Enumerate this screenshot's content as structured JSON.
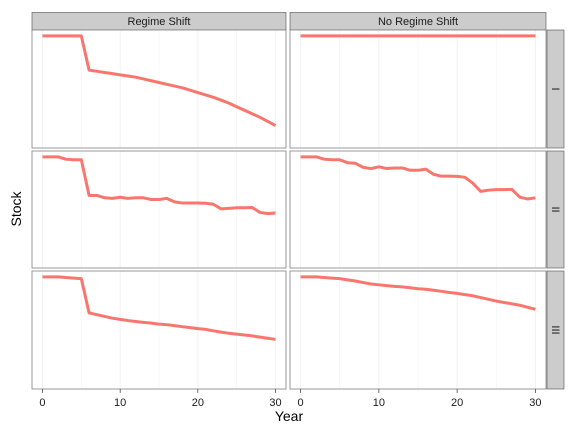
{
  "chart_data": {
    "type": "line",
    "xlabel": "Year",
    "ylabel": "Stock",
    "xlim": [
      0,
      30
    ],
    "x_ticks": [
      0,
      10,
      20,
      30
    ],
    "column_labels": [
      "Regime Shift",
      "No Regime Shift"
    ],
    "row_labels": [
      "I",
      "II",
      "III"
    ],
    "ylim": [
      0,
      1
    ],
    "grid": true,
    "line_color": "#F8766D",
    "panels": [
      {
        "column": "Regime Shift",
        "row": "I",
        "x": [
          0,
          1,
          2,
          3,
          4,
          5,
          6,
          7,
          8,
          9,
          10,
          11,
          12,
          13,
          14,
          15,
          16,
          17,
          18,
          19,
          20,
          21,
          22,
          23,
          24,
          25,
          26,
          27,
          28,
          29,
          30
        ],
        "values": [
          0.95,
          0.95,
          0.95,
          0.95,
          0.95,
          0.95,
          0.66,
          0.65,
          0.64,
          0.63,
          0.62,
          0.61,
          0.6,
          0.585,
          0.57,
          0.555,
          0.54,
          0.525,
          0.51,
          0.49,
          0.47,
          0.45,
          0.43,
          0.405,
          0.38,
          0.35,
          0.32,
          0.29,
          0.26,
          0.225,
          0.19
        ]
      },
      {
        "column": "No Regime Shift",
        "row": "I",
        "x": [
          0,
          1,
          2,
          3,
          4,
          5,
          6,
          7,
          8,
          9,
          10,
          11,
          12,
          13,
          14,
          15,
          16,
          17,
          18,
          19,
          20,
          21,
          22,
          23,
          24,
          25,
          26,
          27,
          28,
          29,
          30
        ],
        "values": [
          0.95,
          0.95,
          0.95,
          0.95,
          0.95,
          0.95,
          0.95,
          0.95,
          0.95,
          0.95,
          0.95,
          0.95,
          0.95,
          0.95,
          0.95,
          0.95,
          0.95,
          0.95,
          0.95,
          0.95,
          0.95,
          0.95,
          0.95,
          0.95,
          0.95,
          0.95,
          0.95,
          0.95,
          0.95,
          0.95,
          0.95
        ]
      },
      {
        "column": "Regime Shift",
        "row": "II",
        "x": [
          0,
          1,
          2,
          3,
          4,
          5,
          6,
          7,
          8,
          9,
          10,
          11,
          12,
          13,
          14,
          15,
          16,
          17,
          18,
          19,
          20,
          21,
          22,
          23,
          24,
          25,
          26,
          27,
          28,
          29,
          30
        ],
        "values": [
          0.95,
          0.95,
          0.95,
          0.93,
          0.925,
          0.925,
          0.62,
          0.62,
          0.6,
          0.595,
          0.605,
          0.595,
          0.6,
          0.6,
          0.585,
          0.585,
          0.595,
          0.565,
          0.555,
          0.555,
          0.555,
          0.553,
          0.545,
          0.505,
          0.51,
          0.515,
          0.515,
          0.517,
          0.475,
          0.465,
          0.47
        ]
      },
      {
        "column": "No Regime Shift",
        "row": "II",
        "x": [
          0,
          1,
          2,
          3,
          4,
          5,
          6,
          7,
          8,
          9,
          10,
          11,
          12,
          13,
          14,
          15,
          16,
          17,
          18,
          19,
          20,
          21,
          22,
          23,
          24,
          25,
          26,
          27,
          28,
          29,
          30
        ],
        "values": [
          0.95,
          0.95,
          0.95,
          0.93,
          0.925,
          0.925,
          0.9,
          0.895,
          0.86,
          0.85,
          0.865,
          0.85,
          0.855,
          0.855,
          0.835,
          0.835,
          0.845,
          0.8,
          0.785,
          0.785,
          0.783,
          0.775,
          0.725,
          0.655,
          0.665,
          0.67,
          0.67,
          0.672,
          0.605,
          0.59,
          0.6
        ]
      },
      {
        "column": "Regime Shift",
        "row": "III",
        "x": [
          0,
          1,
          2,
          3,
          4,
          5,
          6,
          7,
          8,
          9,
          10,
          11,
          12,
          13,
          14,
          15,
          16,
          17,
          18,
          19,
          20,
          21,
          22,
          23,
          24,
          25,
          26,
          27,
          28,
          29,
          30
        ],
        "values": [
          0.95,
          0.95,
          0.95,
          0.945,
          0.94,
          0.935,
          0.645,
          0.63,
          0.615,
          0.6,
          0.59,
          0.58,
          0.572,
          0.565,
          0.558,
          0.55,
          0.545,
          0.537,
          0.528,
          0.52,
          0.512,
          0.505,
          0.493,
          0.482,
          0.472,
          0.465,
          0.458,
          0.45,
          0.44,
          0.43,
          0.42
        ]
      },
      {
        "column": "No Regime Shift",
        "row": "III",
        "x": [
          0,
          1,
          2,
          3,
          4,
          5,
          6,
          7,
          8,
          9,
          10,
          11,
          12,
          13,
          14,
          15,
          16,
          17,
          18,
          19,
          20,
          21,
          22,
          23,
          24,
          25,
          26,
          27,
          28,
          29,
          30
        ],
        "values": [
          0.95,
          0.95,
          0.95,
          0.945,
          0.94,
          0.935,
          0.925,
          0.915,
          0.902,
          0.89,
          0.883,
          0.876,
          0.87,
          0.865,
          0.858,
          0.85,
          0.845,
          0.837,
          0.828,
          0.818,
          0.81,
          0.8,
          0.79,
          0.775,
          0.76,
          0.745,
          0.733,
          0.722,
          0.71,
          0.692,
          0.675
        ]
      }
    ]
  }
}
